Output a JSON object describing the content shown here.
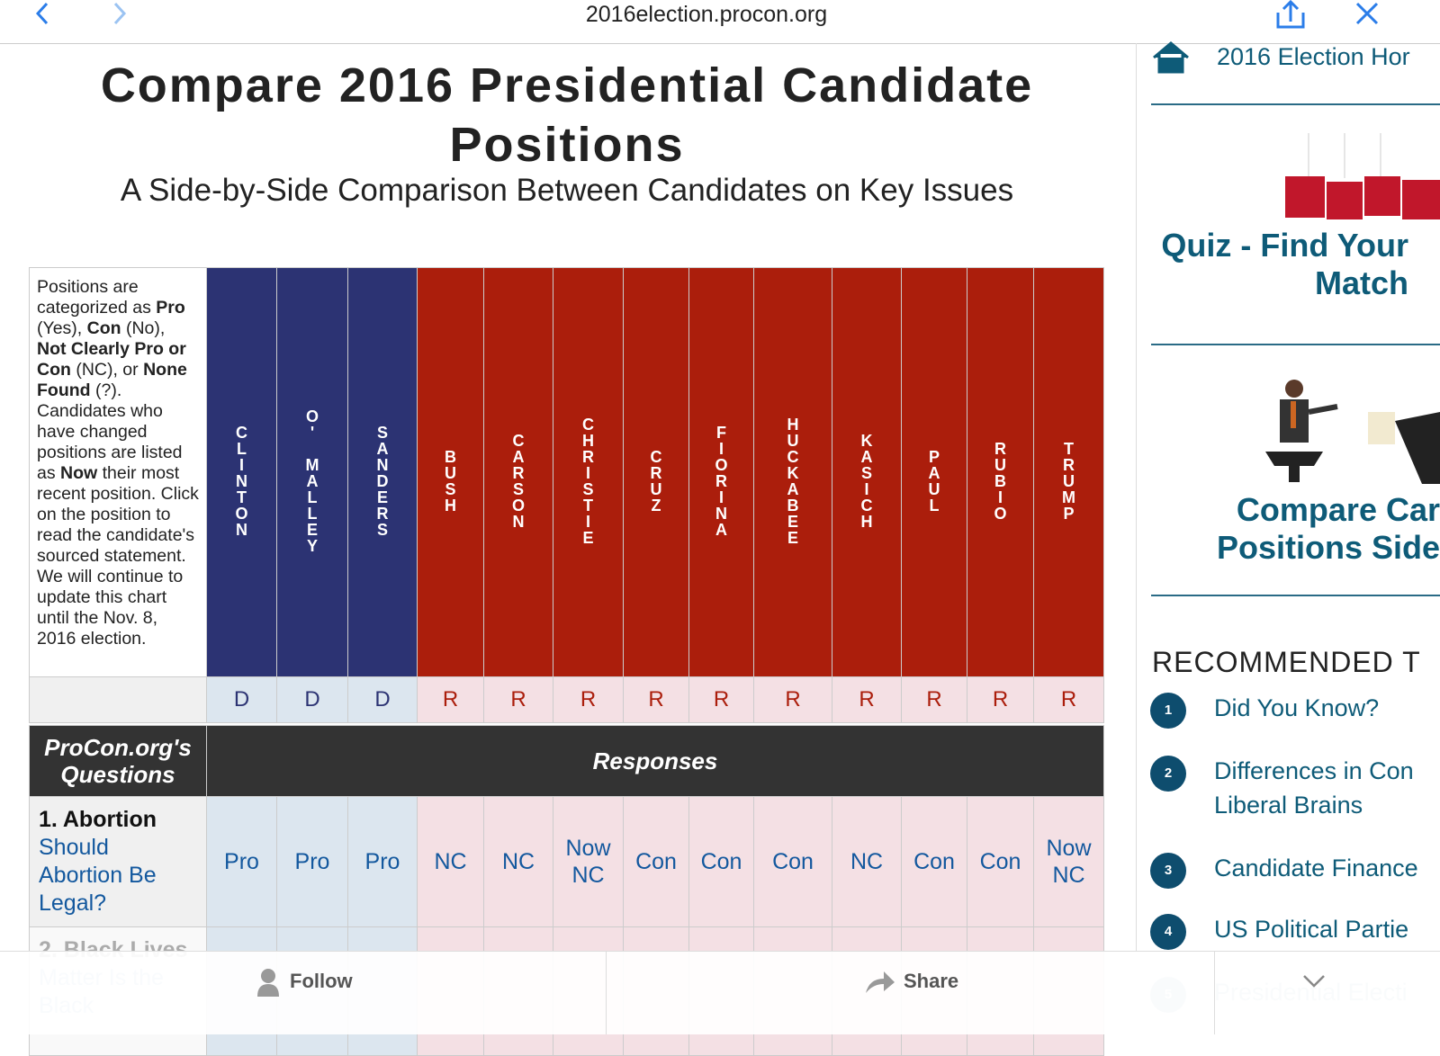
{
  "browser": {
    "url": "2016election.procon.org"
  },
  "header": {
    "title": "Compare 2016 Presidential Candidate Positions",
    "subtitle": "A Side-by-Side Comparison Between Candidates on Key Issues"
  },
  "table": {
    "intro": [
      "Positions are categorized as ",
      "Pro",
      " (Yes), ",
      "Con",
      " (No), ",
      "Not Clearly Pro or Con",
      " (NC), or ",
      "None Found",
      " (?). Candidates who have changed positions are listed as ",
      "Now",
      " their most recent position. Click on the position to read the candidate's sourced statement. We will continue to update this chart until the Nov. 8, 2016 election."
    ],
    "candidates": [
      {
        "name": "CLINTON",
        "party": "D"
      },
      {
        "name": "O' MALLEY",
        "party": "D"
      },
      {
        "name": "SANDERS",
        "party": "D"
      },
      {
        "name": "BUSH",
        "party": "R"
      },
      {
        "name": "CARSON",
        "party": "R"
      },
      {
        "name": "CHRISTIE",
        "party": "R"
      },
      {
        "name": "CRUZ",
        "party": "R"
      },
      {
        "name": "FIORINA",
        "party": "R"
      },
      {
        "name": "HUCKABEE",
        "party": "R"
      },
      {
        "name": "KASICH",
        "party": "R"
      },
      {
        "name": "PAUL",
        "party": "R"
      },
      {
        "name": "RUBIO",
        "party": "R"
      },
      {
        "name": "TRUMP",
        "party": "R"
      }
    ],
    "questions_header": "ProCon.org's Questions",
    "responses_header": "Responses",
    "rows": [
      {
        "topic": "1. Abortion",
        "question": "Should Abortion Be Legal?",
        "responses": [
          "Pro",
          "Pro",
          "Pro",
          "NC",
          "NC",
          "Now NC",
          "Con",
          "Con",
          "Con",
          "NC",
          "Con",
          "Con",
          "Now NC"
        ]
      },
      {
        "topic": "2. Black Lives",
        "question": "Matter Is the Black",
        "responses": []
      }
    ]
  },
  "sidebar": {
    "home": "2016 Election Hor",
    "quiz": "Quiz - Find Your Match",
    "compare": "Compare Car Positions Side",
    "recommended": "RECOMMENDED T",
    "items": [
      {
        "number": "1",
        "text": "Did You Know?"
      },
      {
        "number": "2",
        "text": "Differences in Con Liberal Brains"
      },
      {
        "number": "3",
        "text": "Candidate Finance"
      },
      {
        "number": "4",
        "text": "US Political Partie"
      },
      {
        "number": "5",
        "text": "Presidential Electi"
      }
    ]
  },
  "bottom_bar": {
    "follow": "Follow",
    "share": "Share"
  }
}
